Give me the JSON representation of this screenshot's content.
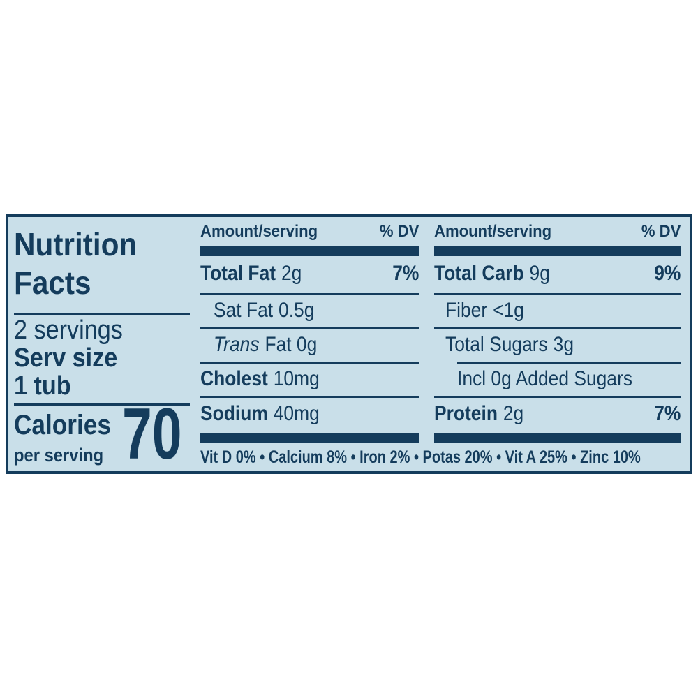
{
  "label": {
    "title_line1": "Nutrition",
    "title_line2": "Facts",
    "servings": "2 servings",
    "serv_size_label": "Serv size",
    "serv_size_value": "1 tub",
    "calories_label": "Calories",
    "calories_sublabel": "per serving",
    "calories_value": "70",
    "columns": [
      {
        "header_left": "Amount/serving",
        "header_right": "% DV",
        "rows": [
          {
            "label": "Total Fat",
            "value": "2g",
            "dv": "7%"
          },
          {
            "label": "Sat Fat",
            "value": "0.5g",
            "dv": ""
          },
          {
            "label": "Trans",
            "value": "Fat 0g",
            "dv": ""
          },
          {
            "label": "Cholest",
            "value": "10mg",
            "dv": ""
          },
          {
            "label": "Sodium",
            "value": "40mg",
            "dv": ""
          }
        ]
      },
      {
        "header_left": "Amount/serving",
        "header_right": "% DV",
        "rows": [
          {
            "label": "Total Carb",
            "value": "9g",
            "dv": "9%"
          },
          {
            "label": "Fiber",
            "value": "<1g",
            "dv": ""
          },
          {
            "label": "Total Sugars",
            "value": "3g",
            "dv": ""
          },
          {
            "label": "Incl 0g Added Sugars",
            "value": "",
            "dv": ""
          },
          {
            "label": "Protein",
            "value": "2g",
            "dv": "7%"
          }
        ]
      }
    ],
    "micronutrients": "Vit D 0% • Calcium 8% • Iron 2% • Potas 20% • Vit A 25% • Zinc 10%",
    "colors": {
      "navy": "#143c5c",
      "background": "#c9dfe9",
      "page_background": "#ffffff"
    }
  }
}
